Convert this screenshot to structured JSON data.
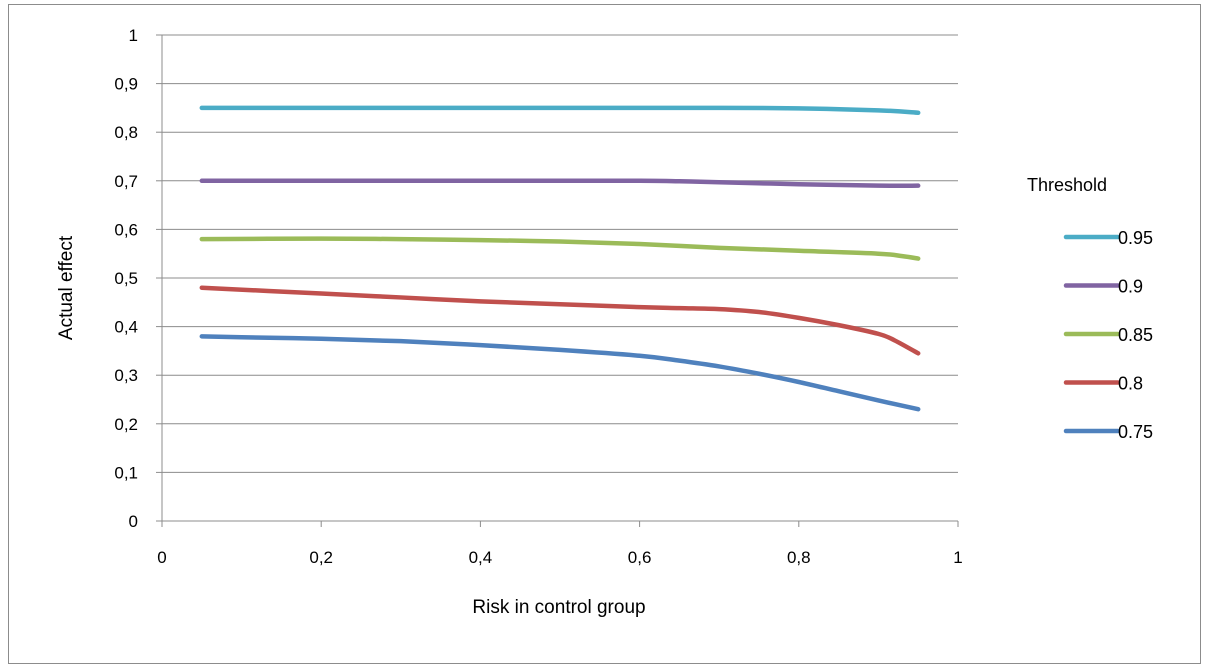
{
  "chart_data": {
    "type": "line",
    "xlabel": "Risk in control group",
    "ylabel": "Actual effect",
    "xlim": [
      0,
      1
    ],
    "ylim": [
      0,
      1
    ],
    "x_ticks": [
      0,
      0.2,
      0.4,
      0.6,
      0.8,
      1
    ],
    "y_ticks": [
      0,
      0.1,
      0.2,
      0.3,
      0.4,
      0.5,
      0.6,
      0.7,
      0.8,
      0.9,
      1
    ],
    "x_tick_labels": [
      "0",
      "0,2",
      "0,4",
      "0,6",
      "0,8",
      "1"
    ],
    "y_tick_labels": [
      "0",
      "0,1",
      "0,2",
      "0,3",
      "0,4",
      "0,5",
      "0,6",
      "0,7",
      "0,8",
      "0,9",
      "1"
    ],
    "grid": "horizontal",
    "legend_title": "Threshold",
    "legend_position": "right",
    "series": [
      {
        "name": "0.95",
        "color": "#4bacc6",
        "x": [
          0.05,
          0.2,
          0.4,
          0.6,
          0.7,
          0.8,
          0.9,
          0.95
        ],
        "y": [
          0.85,
          0.85,
          0.85,
          0.85,
          0.85,
          0.849,
          0.845,
          0.84
        ]
      },
      {
        "name": "0.9",
        "color": "#8064a2",
        "x": [
          0.05,
          0.2,
          0.4,
          0.6,
          0.65,
          0.7,
          0.8,
          0.9,
          0.95
        ],
        "y": [
          0.7,
          0.7,
          0.7,
          0.7,
          0.699,
          0.697,
          0.693,
          0.69,
          0.69
        ]
      },
      {
        "name": "0.85",
        "color": "#9bbb59",
        "x": [
          0.05,
          0.2,
          0.3,
          0.4,
          0.5,
          0.6,
          0.7,
          0.8,
          0.9,
          0.93,
          0.95
        ],
        "y": [
          0.58,
          0.581,
          0.58,
          0.578,
          0.575,
          0.57,
          0.562,
          0.556,
          0.55,
          0.545,
          0.54
        ]
      },
      {
        "name": "0.8",
        "color": "#c0504d",
        "x": [
          0.05,
          0.2,
          0.3,
          0.4,
          0.5,
          0.6,
          0.65,
          0.7,
          0.75,
          0.8,
          0.85,
          0.9,
          0.92,
          0.95
        ],
        "y": [
          0.48,
          0.468,
          0.46,
          0.452,
          0.446,
          0.44,
          0.438,
          0.436,
          0.43,
          0.418,
          0.403,
          0.385,
          0.372,
          0.345
        ]
      },
      {
        "name": "0.75",
        "color": "#4f81bd",
        "x": [
          0.05,
          0.1,
          0.2,
          0.3,
          0.4,
          0.5,
          0.6,
          0.65,
          0.7,
          0.75,
          0.8,
          0.85,
          0.9,
          0.95
        ],
        "y": [
          0.38,
          0.378,
          0.375,
          0.37,
          0.362,
          0.352,
          0.34,
          0.33,
          0.318,
          0.303,
          0.286,
          0.267,
          0.248,
          0.23
        ]
      }
    ]
  }
}
